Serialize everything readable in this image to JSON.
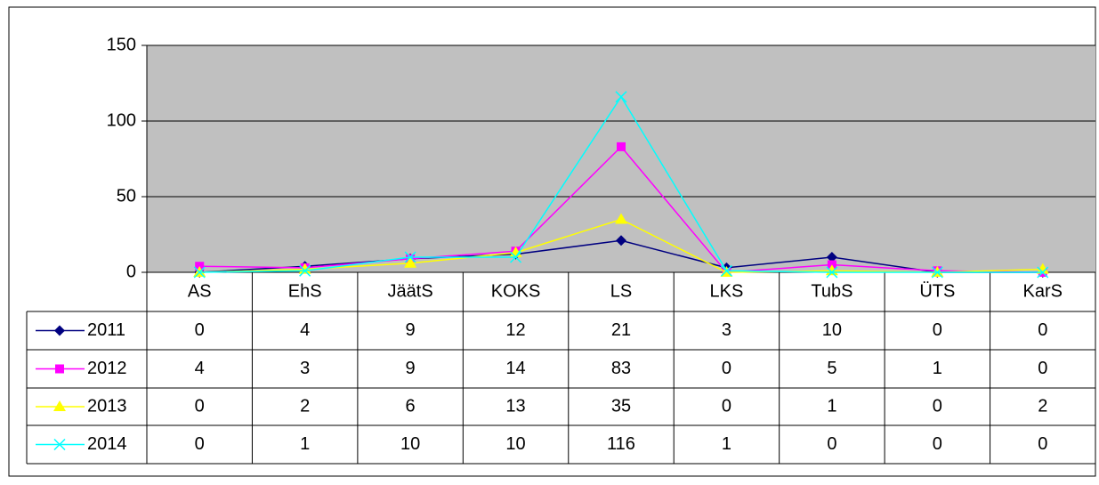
{
  "chart_data": {
    "type": "line",
    "categories": [
      "AS",
      "EhS",
      "JäätS",
      "KOKS",
      "LS",
      "LKS",
      "TubS",
      "ÜTS",
      "KarS"
    ],
    "series": [
      {
        "name": "2011",
        "color": "#000080",
        "marker": "diamond",
        "values": [
          0,
          4,
          9,
          12,
          21,
          3,
          10,
          0,
          0
        ]
      },
      {
        "name": "2012",
        "color": "#ff00ff",
        "marker": "square",
        "values": [
          4,
          3,
          9,
          14,
          83,
          0,
          5,
          1,
          0
        ]
      },
      {
        "name": "2013",
        "color": "#ffff00",
        "marker": "triangle",
        "values": [
          0,
          2,
          6,
          13,
          35,
          0,
          1,
          0,
          2
        ]
      },
      {
        "name": "2014",
        "color": "#00ffff",
        "marker": "x",
        "values": [
          0,
          1,
          10,
          10,
          116,
          1,
          0,
          0,
          0
        ]
      }
    ],
    "ylim": [
      0,
      150
    ],
    "yticks": [
      0,
      50,
      100,
      150
    ],
    "grid": true,
    "data_table": true
  }
}
